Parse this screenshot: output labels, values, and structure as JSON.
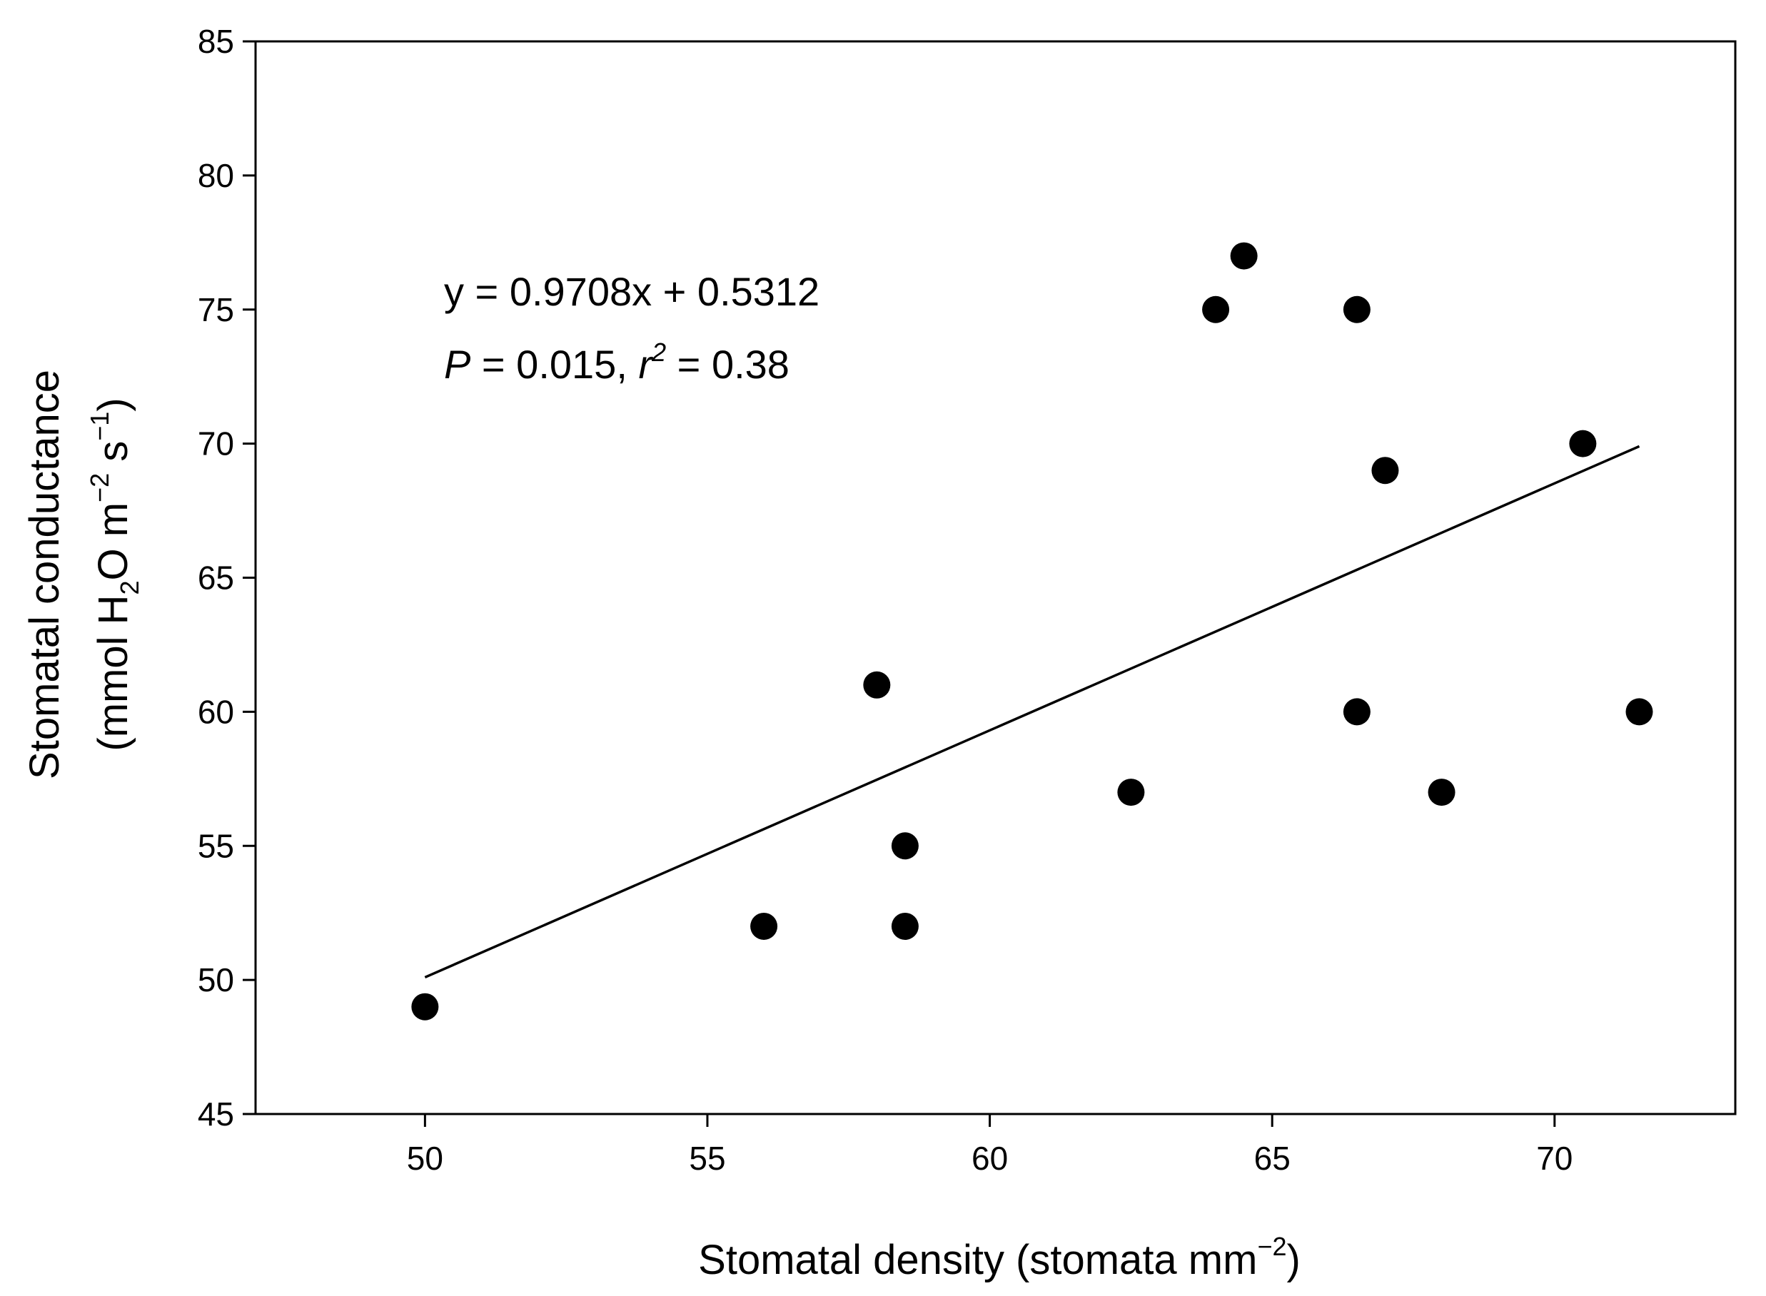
{
  "chart_data": {
    "type": "scatter",
    "title": "",
    "xlabel": {
      "main": "Stomatal density (stomata mm",
      "sup": "−2",
      "tail": ")"
    },
    "ylabel": {
      "line1": "Stomatal conductance",
      "line2_prefix": "(mmol H",
      "line2_sub": "2",
      "line2_mid": "O m",
      "line2_sup1": "−2",
      "line2_s": " s",
      "line2_sup2": "−1",
      "line2_tail": ")"
    },
    "xlim": [
      47,
      73.2
    ],
    "ylim": [
      45,
      85
    ],
    "xticks": [
      50,
      55,
      60,
      65,
      70
    ],
    "yticks": [
      45,
      50,
      55,
      60,
      65,
      70,
      75,
      80,
      85
    ],
    "points": [
      {
        "x": 50.0,
        "y": 49
      },
      {
        "x": 56.0,
        "y": 52
      },
      {
        "x": 58.0,
        "y": 61
      },
      {
        "x": 58.5,
        "y": 55
      },
      {
        "x": 58.5,
        "y": 52
      },
      {
        "x": 62.5,
        "y": 57
      },
      {
        "x": 64.0,
        "y": 75
      },
      {
        "x": 64.5,
        "y": 77
      },
      {
        "x": 66.5,
        "y": 75
      },
      {
        "x": 66.5,
        "y": 60
      },
      {
        "x": 67.0,
        "y": 69
      },
      {
        "x": 68.0,
        "y": 57
      },
      {
        "x": 70.5,
        "y": 70
      },
      {
        "x": 71.5,
        "y": 60
      }
    ],
    "regression": {
      "slope": 0.9708,
      "intercept": 0.5312,
      "x_range": [
        50,
        71.5
      ],
      "equation": "y = 0.9708x + 0.5312",
      "p_label": "P",
      "p_value_text": " = 0.015, ",
      "r_label": "r",
      "r_sup": "2",
      "r_value_text": " = 0.38"
    },
    "marker_color": "#000000",
    "line_color": "#000000",
    "grid": false
  }
}
